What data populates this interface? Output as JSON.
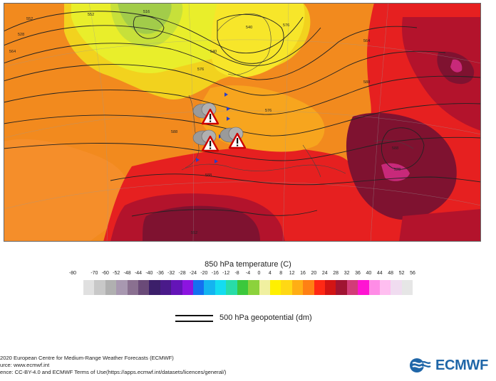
{
  "map": {
    "warning_icons": [
      "storm-warning",
      "storm-warning",
      "storm-warning"
    ],
    "contour_labels": [
      "552",
      "528",
      "564",
      "576",
      "516",
      "540",
      "588",
      "564",
      "576",
      "588",
      "588",
      "576",
      "588",
      "528",
      "552",
      "540",
      "552"
    ],
    "colors": {
      "ocean_orange": "#f28a1e",
      "cold_yellow": "#e9ee2b",
      "green": "#a2cc4a",
      "red": "#e62020",
      "dark_red": "#b3132c",
      "maroon": "#7f1230",
      "magenta": "#c8297a"
    }
  },
  "legend": {
    "title": "850 hPa temperature (C)",
    "ticks": [
      "-80",
      "-70",
      "-60",
      "-52",
      "-48",
      "-44",
      "-40",
      "-36",
      "-32",
      "-28",
      "-24",
      "-20",
      "-16",
      "-12",
      "-8",
      "-4",
      "0",
      "4",
      "8",
      "12",
      "16",
      "20",
      "24",
      "28",
      "32",
      "36",
      "40",
      "44",
      "48",
      "52",
      "56"
    ],
    "colors": [
      "#e0e0e0",
      "#c8c8c8",
      "#b0b0b0",
      "#a898b0",
      "#8a7090",
      "#6a4a78",
      "#3c1f6a",
      "#4a1a8a",
      "#6414b8",
      "#8c14e0",
      "#1470f0",
      "#14b4f0",
      "#14dcf0",
      "#28dca8",
      "#3cc83c",
      "#8cd23c",
      "#f0f0a0",
      "#fff000",
      "#ffd814",
      "#ffae14",
      "#ff8014",
      "#ff2814",
      "#d21414",
      "#a01432",
      "#d23c78",
      "#ff14d2",
      "#ff8ce6",
      "#ffbef0",
      "#f0dcf0",
      "#e6e6e6"
    ],
    "geopotential_label": "500 hPa geopotential (dm)"
  },
  "footer": {
    "copyright": "2020 European Centre for Medium-Range Weather Forecasts (ECMWF)",
    "source": "urce: www.ecmwf.int",
    "licence": "ence: CC-BY-4.0 and ECMWF Terms of Use(https://apps.ecmwf.int/datasets/licences/general/)",
    "logo_text": "ECMWF",
    "logo_color": "#1f66a8"
  }
}
